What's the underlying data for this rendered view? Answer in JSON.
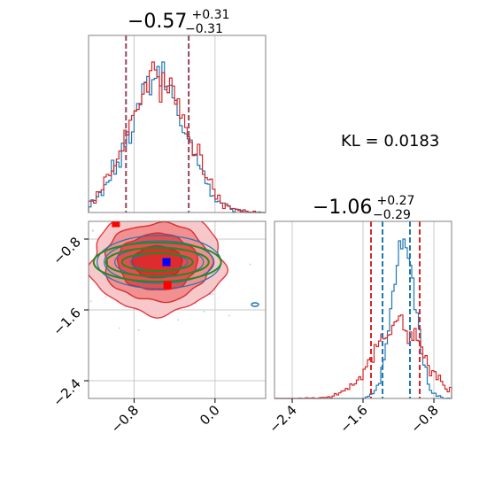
{
  "chart_data": {
    "type": "corner",
    "colors": {
      "series_a": "#1f77b4",
      "series_b": "#d62728",
      "overlay": "#228b22",
      "marker_blue": "#0000ff",
      "marker_red": "#ff0000",
      "grid": "#c8c8c8",
      "frame": "#808080"
    },
    "marginal_1": {
      "title_main": "−0.57",
      "title_sup": "+0.31",
      "title_sub": "−0.31",
      "xlim": [
        -1.25,
        0.5
      ],
      "grid_x": [
        -0.8,
        0.0
      ],
      "quantile_lines": [
        -0.88,
        -0.26
      ],
      "series": [
        {
          "color_key": "series_a",
          "mean": -0.57,
          "sd": 0.28
        },
        {
          "color_key": "series_b",
          "mean": -0.57,
          "sd": 0.29
        }
      ]
    },
    "marginal_2": {
      "title_main": "−1.06",
      "title_sup": "+0.27",
      "title_sub": "−0.29",
      "xlim": [
        -2.6,
        -0.6
      ],
      "ticks": [
        {
          "value": -2.4,
          "label": "−2.4"
        },
        {
          "value": -1.6,
          "label": "−1.6"
        },
        {
          "value": -0.8,
          "label": "−0.8"
        }
      ],
      "series_a_quantiles": [
        -1.38,
        -1.07
      ],
      "series_b_quantiles": [
        -1.51,
        -0.96
      ],
      "series": [
        {
          "color_key": "series_a",
          "mean": -1.14,
          "sd": 0.13
        },
        {
          "color_key": "series_b",
          "mean": -1.2,
          "sd": 0.28
        }
      ]
    },
    "joint": {
      "xlim": [
        -1.25,
        0.5
      ],
      "ylim": [
        -2.6,
        -0.6
      ],
      "x_ticks": [
        {
          "value": -0.8,
          "label": "−0.8"
        },
        {
          "value": 0.0,
          "label": "0.0"
        }
      ],
      "y_ticks": [
        {
          "value": -0.8,
          "label": "−0.8"
        },
        {
          "value": -1.6,
          "label": "−1.6"
        },
        {
          "value": -2.4,
          "label": "−2.4"
        }
      ],
      "center": [
        -0.57,
        -1.06
      ],
      "markers": [
        {
          "name": "blue-square",
          "x": -0.48,
          "y": -1.06,
          "color_key": "marker_blue"
        },
        {
          "name": "red-square-top",
          "x": -0.98,
          "y": -0.62,
          "color_key": "marker_red"
        },
        {
          "name": "red-square-bottom",
          "x": -0.47,
          "y": -1.32,
          "color_key": "marker_red"
        }
      ]
    },
    "kl_text": "KL = 0.0183"
  }
}
